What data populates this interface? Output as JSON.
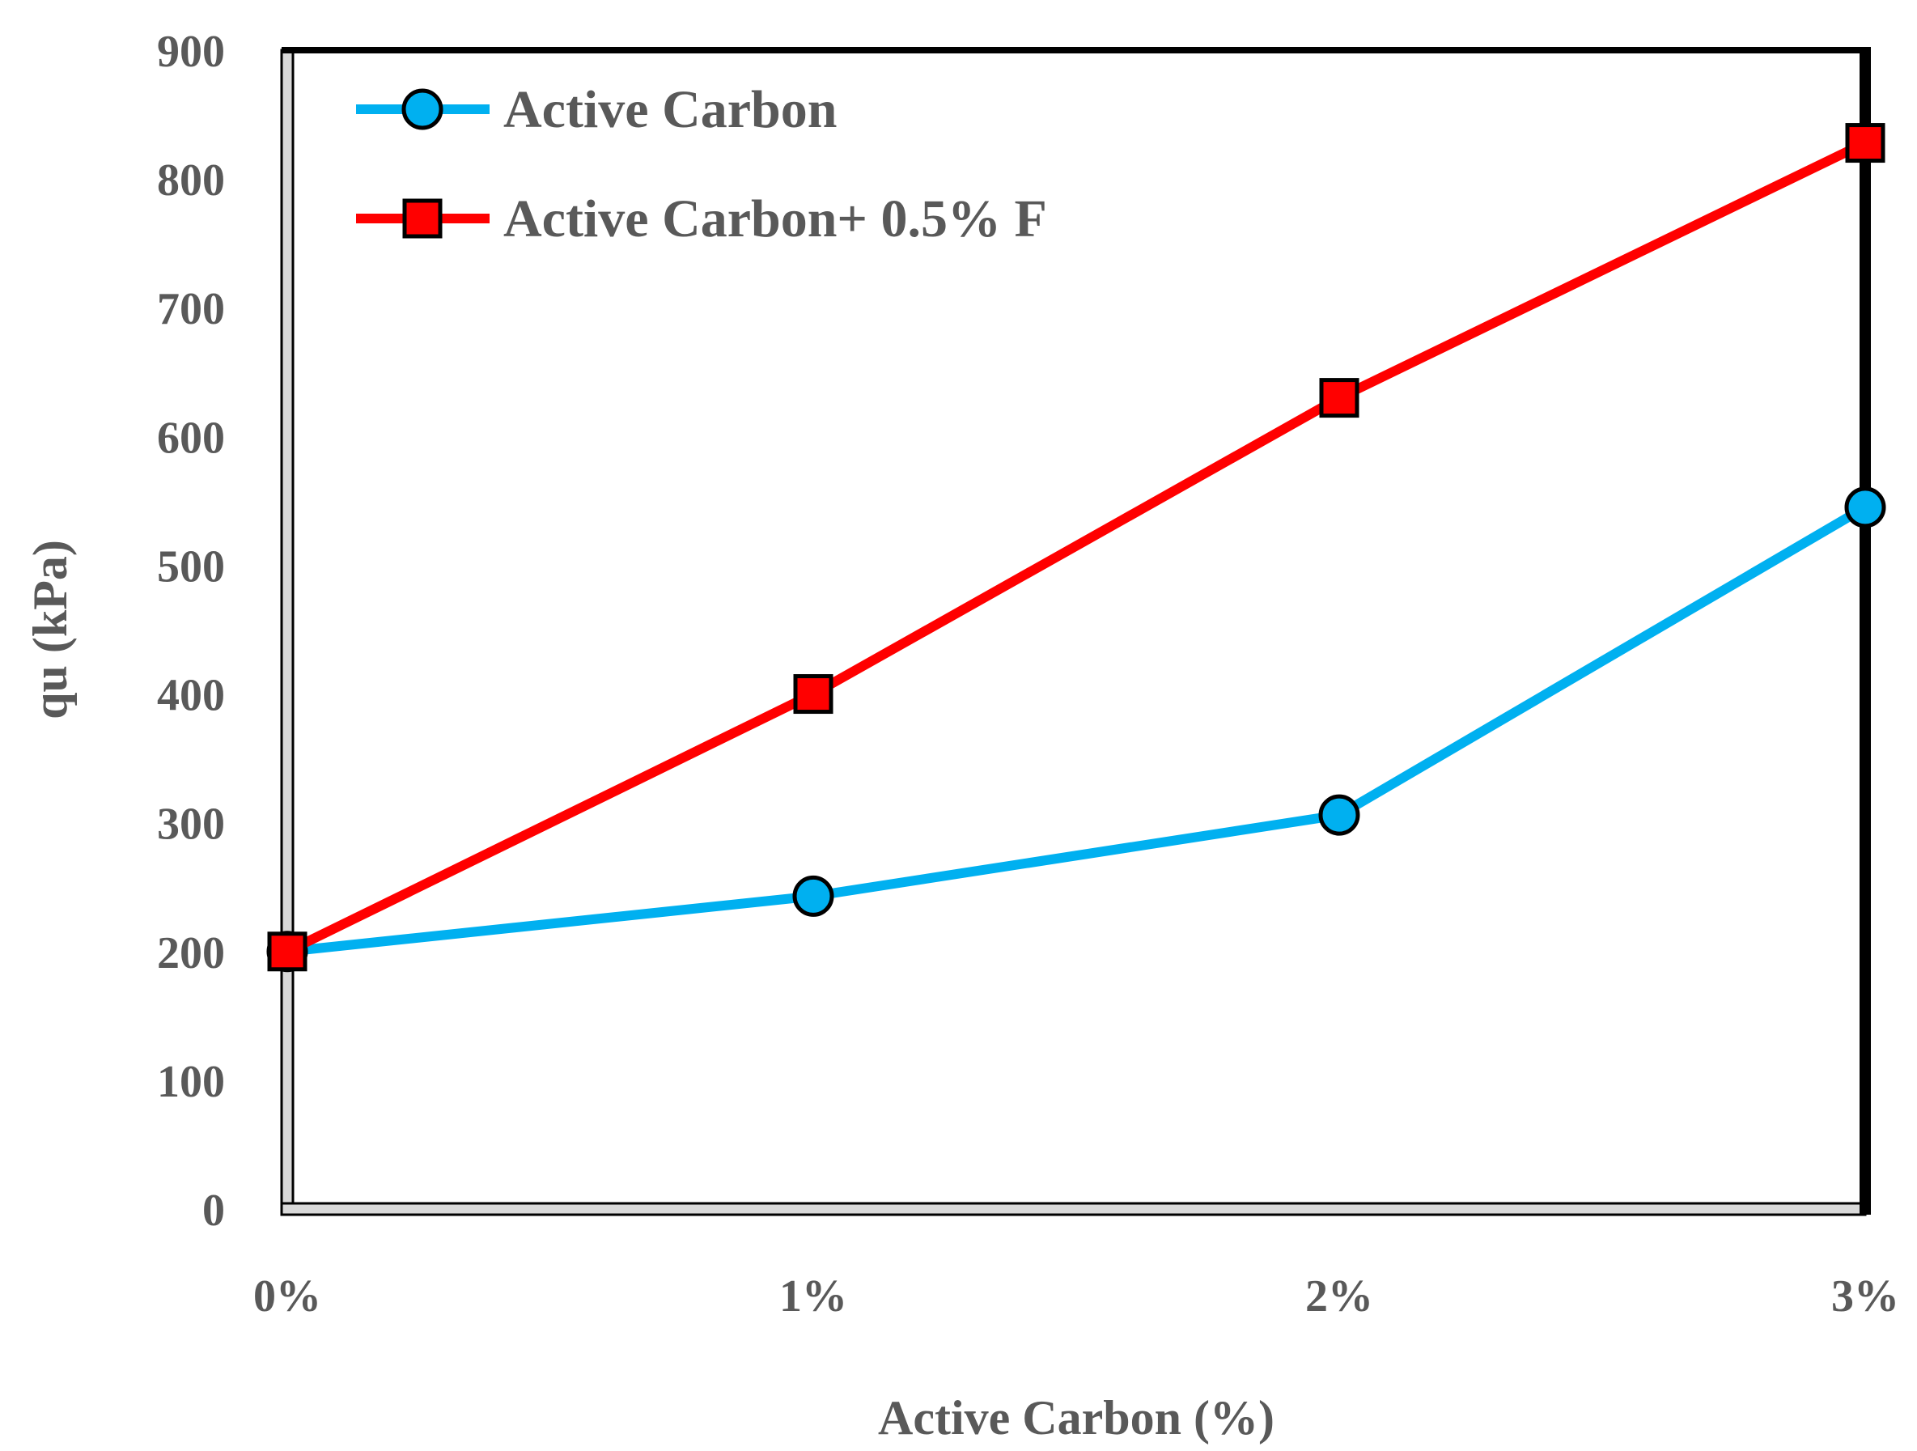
{
  "chart_data": {
    "type": "line",
    "title": "",
    "xlabel": "Active Carbon  (%)",
    "ylabel": "qu (kPa)",
    "categories": [
      "0%",
      "1%",
      "2%",
      "3%"
    ],
    "ylim": [
      0,
      900
    ],
    "yticks": [
      0,
      100,
      200,
      300,
      400,
      500,
      600,
      700,
      800,
      900
    ],
    "grid": false,
    "legend_position": "top-left",
    "series": [
      {
        "name": "Active Carbon",
        "values": [
          200,
          243,
          306,
          545
        ],
        "color": "#00B0F0",
        "marker": "circle"
      },
      {
        "name": "Active Carbon+ 0.5% F",
        "values": [
          200,
          400,
          630,
          828
        ],
        "color": "#FF0000",
        "marker": "square"
      }
    ]
  }
}
